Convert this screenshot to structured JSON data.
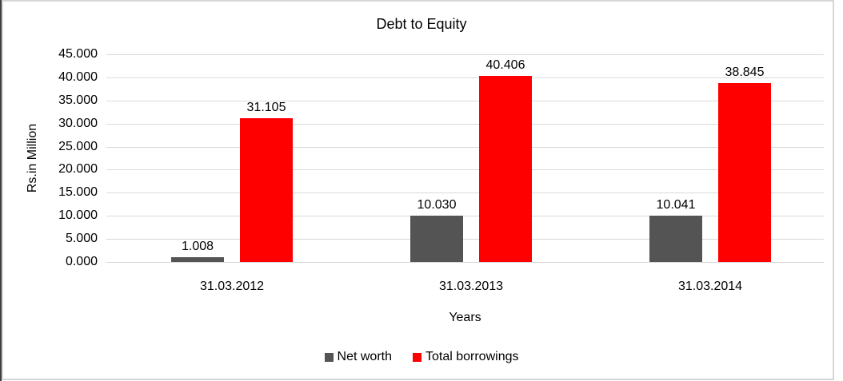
{
  "title": "Debt to Equity",
  "chart_data": {
    "type": "bar",
    "title": "Debt to Equity",
    "xlabel": "Years",
    "ylabel": "Rs.in Million",
    "categories": [
      "31.03.2012",
      "31.03.2013",
      "31.03.2014"
    ],
    "series": [
      {
        "name": "Net worth",
        "color": "#545454",
        "values": [
          1.008,
          10.03,
          10.041
        ],
        "labels": [
          "1.008",
          "10.030",
          "10.041"
        ]
      },
      {
        "name": "Total borrowings",
        "color": "#FF0000",
        "values": [
          31.105,
          40.406,
          38.845
        ],
        "labels": [
          "31.105",
          "40.406",
          "38.845"
        ]
      }
    ],
    "ylim": [
      0,
      45
    ],
    "ytick_step": 5,
    "ytick_decimals": 3,
    "grid": true,
    "gridline_color": "#D9D9D9",
    "text_color": "#000000",
    "legend_position": "bottom"
  }
}
